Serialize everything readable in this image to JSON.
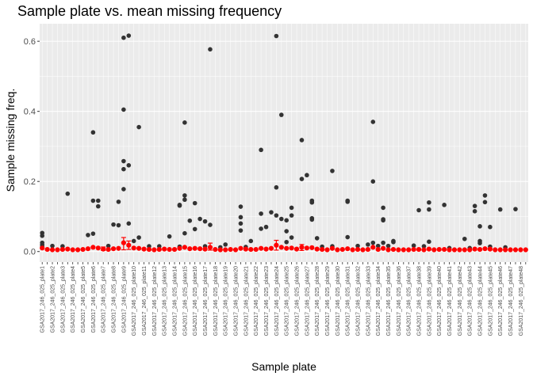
{
  "chart_data": {
    "type": "scatter",
    "title": "Sample plate vs. mean missing frequency",
    "xlabel": "Sample plate",
    "ylabel": "Sample missing freq.",
    "ylim": [
      -0.03,
      0.65
    ],
    "yticks": [
      0.0,
      0.2,
      0.4,
      0.6
    ],
    "ytick_labels": [
      "0.0",
      "0.2",
      "0.4",
      "0.6"
    ],
    "grid": true,
    "legend": "none",
    "colors": {
      "panel": "#ebebeb",
      "grid": "#ffffff",
      "points": "#333333",
      "means": "#ff0000",
      "errorbars": "#ff0000"
    },
    "categories": [
      "GSA2017_246_025_plate1",
      "GSA2017_246_025_plate2",
      "GSA2017_246_025_plate3",
      "GSA2017_246_025_plate4",
      "GSA2017_246_025_plate5",
      "GSA2017_246_025_plate6",
      "GSA2017_246_025_plate7",
      "GSA2017_246_025_plate8",
      "GSA2017_246_025_plate9",
      "GSA2017_246_025_plate10",
      "GSA2017_246_025_plate11",
      "GSA2017_246_025_plate12",
      "GSA2017_246_025_plate13",
      "GSA2017_246_025_plate14",
      "GSA2017_246_025_plate15",
      "GSA2017_246_025_plate16",
      "GSA2017_246_025_plate17",
      "GSA2017_246_025_plate18",
      "GSA2017_246_025_plate19",
      "GSA2017_246_025_plate20",
      "GSA2017_246_025_plate21",
      "GSA2017_246_025_plate22",
      "GSA2017_246_025_plate23",
      "GSA2017_246_025_plate24",
      "GSA2017_246_025_plate25",
      "GSA2017_246_025_plate26",
      "GSA2017_246_025_plate27",
      "GSA2017_246_025_plate28",
      "GSA2017_246_025_plate29",
      "GSA2017_246_025_plate30",
      "GSA2017_246_025_plate31",
      "GSA2017_246_025_plate32",
      "GSA2017_246_025_plate33",
      "GSA2017_246_025_plate34",
      "GSA2017_246_025_plate35",
      "GSA2017_246_025_plate36",
      "GSA2017_246_025_plate37",
      "GSA2017_246_025_plate38",
      "GSA2017_246_025_plate39",
      "GSA2017_246_025_plate40",
      "GSA2017_246_025_plate41",
      "GSA2017_246_025_plate42",
      "GSA2017_246_025_plate43",
      "GSA2017_246_025_plate44",
      "GSA2017_246_025_plate45",
      "GSA2017_246_025_plate46",
      "GSA2017_246_025_plate47",
      "GSA2017_246_025_plate48",
      "GSA2017_246_025_plate49",
      "GSA2017_246_025_plate50",
      "GSA2017_246_025_plate51",
      "GSA2017_246_025_plate52",
      "GSA2017_246_025_plate53",
      "GSA2017_246_025_plate54",
      "GSA2017_246_025_plate55",
      "GSA2017_246_025_plate56",
      "GSA2017_246_025_plate57",
      "GSA2017_246_025_plate58",
      "GSA2017_246_025_plate59",
      "GSA2017_246_025_plate60",
      "GSA2017_246_025_plate61",
      "GSA2017_246_025_plate62",
      "GSA2017_246_025_plate63",
      "GSA2017_246_025_plate64",
      "GSA2017_246_025_plate65",
      "GSA2017_246_025_plate66",
      "GSA2017_246_025_plate67",
      "GSA2017_246_025_plate68",
      "GSA2017_246_025_plate69",
      "GSA2017_246_025_plate70",
      "GSA2017_246_025_plate71",
      "GSA2017_246_025_plate72",
      "GSA2017_246_025_plate73",
      "GSA2017_246_025_plate74",
      "GSA2017_246_025_plate75",
      "GSA2017_246_025_plate76",
      "GSA2017_246_025_plate77",
      "GSA2017_246_025_plate78",
      "GSA2017_246_025_plate79",
      "GSA2017_246_025_plate80",
      "GSA2017_246_025_plate81",
      "GSA2017_246_025_plate82",
      "GSA2017_246_025_plate83",
      "GSA2017_246_025_plate84",
      "GSA2017_246_025_plate85",
      "GSA2017_246_025_plate86",
      "GSA2017_246_025_plate87",
      "GSA2017_246_025_plate88",
      "GSA2017_246_025_plate89",
      "GSA2017_246_025_plate90",
      "GSA2017_246_025_plate91",
      "GSA2017_246_025_plate92",
      "GSA2017_246_025_plate93",
      "GSA2017_246_025_plate94",
      "GSA2017_246_025_plate95",
      "GSA2017_246_025_plate96",
      "GSA2017_246_025_plate97",
      "GSA2017_246_025_plate98",
      "GSA2017_246_025_plate99",
      "GSA2017_246_025_plate100",
      "GSA2017_246_025_plate101",
      "GSA2017_246_025_plate102",
      "GSA2017_246_025_plate103",
      "GSA2017_246_025_plate104",
      "GSA2017_246_025_plate105",
      "GSA2017_246_025_plate106",
      "GSA2017_246_025_plate107",
      "GSA2017_246_025_plate108",
      "GSA2017_246_025_plate109",
      "GSA2017_246_025_plate110",
      "GSA2017_246_025_plate111",
      "GSA2017_246_025_plate112",
      "GSA2017_246_025_plate113",
      "GSA2017_246_025_plate114",
      "GSA2017_246_025_plate115",
      "GSA2017_246_025_plate116",
      "GSA2017_246_025_plate117",
      "GSA2017_246_025_plate118",
      "GSA2017_246_025_plate119",
      "GSA2017_246_025_plate120",
      "GSA2017_246_025_plate121",
      "GSA2017_246_025_plate122",
      "GSA2017_246_025_plate123",
      "GSA2017_246_025_plate124",
      "GSA2017_246_025_plate125",
      "GSA2017_246_025_plate126",
      "GSA2017_246_025_plate127",
      "GSA2017_246_025_plate128",
      "GSA2017_246_025_plate129",
      "GSA2017_246_025_plate130",
      "GSA2017_246_025_plate131",
      "GSA2017_246_025_plate132",
      "GSA2017_246_025_plate133",
      "GSA2017_246_025_plate134",
      "GSA2017_246_025_plate135",
      "GSA2017_246_025_plate136",
      "GSA2017_246_025_plate137",
      "GSA2017_246_025_plate138",
      "GSA2017_246_025_plate139",
      "GSA2017_246_025_plate140",
      "GSA2017_246_025_plate141",
      "GSA2017_246_025_plate142",
      "GSA2017_246_025_plate143",
      "GSA2017_246_025_plate144",
      "GSA2017_246_025_plate145",
      "GSA2017_246_025_plate146",
      "GSA2017_246_025_plate147",
      "GSA2017_246_025_plate148",
      "GSA2017_246_025_plate149",
      "GSA2017_246_025_plate150",
      "GSA2017_246_025_plate151",
      "GSA2017_246_025_plate152",
      "GSA2017_246_025_plate153",
      "GSA2017_246_025_plate154",
      "GSA2017_246_025_plate155",
      "GSA2017_246_025_plate156",
      "GSA2017_246_025_plate157",
      "GSA2017_246_025_plate158",
      "GSA2017_246_025_plate159",
      "GSA2017_246_025_plate160",
      "GSA2017_246_025_plate161",
      "GSA2017_246_025_plate162",
      "GSA2017_246_025_plate163",
      "GSA2017_246_025_plate164",
      "GSA2017_246_025_plate165",
      "GSA2017_246_025_plate166",
      "GSA2017_246_025_plate167",
      "GSA2017_246_025_plate168",
      "GSA2017_246_025_plate169",
      "GSA2017_246_025_plate170",
      "GSA2017_246_025_plate171",
      "GSA2017_246_025_plate172",
      "GSA2017_246_025_plate173",
      "GSA2017_246_025_plate174",
      "GSA2017_246_025_plate175",
      "COMBS2017_246_025_plate",
      "COMBS2017_246_025_RERUN"
    ],
    "tick_label_every": 2,
    "points": [
      [
        0,
        0.053
      ],
      [
        0,
        0.045
      ],
      [
        0,
        0.025
      ],
      [
        0,
        0.019
      ],
      [
        0,
        0.013
      ],
      [
        2,
        0.016
      ],
      [
        4,
        0.015
      ],
      [
        5,
        0.165
      ],
      [
        9,
        0.047
      ],
      [
        10,
        0.34
      ],
      [
        10,
        0.145
      ],
      [
        10,
        0.051
      ],
      [
        11,
        0.145
      ],
      [
        11,
        0.129
      ],
      [
        13,
        0.016
      ],
      [
        14,
        0.077
      ],
      [
        15,
        0.142
      ],
      [
        15,
        0.075
      ],
      [
        16,
        0.61
      ],
      [
        16,
        0.405
      ],
      [
        16,
        0.258
      ],
      [
        16,
        0.235
      ],
      [
        16,
        0.178
      ],
      [
        16,
        0.025
      ],
      [
        17,
        0.616
      ],
      [
        17,
        0.246
      ],
      [
        17,
        0.08
      ],
      [
        18,
        0.03
      ],
      [
        19,
        0.355
      ],
      [
        19,
        0.04
      ],
      [
        21,
        0.015
      ],
      [
        23,
        0.015
      ],
      [
        25,
        0.043
      ],
      [
        27,
        0.133
      ],
      [
        27,
        0.131
      ],
      [
        27,
        0.014
      ],
      [
        28,
        0.148
      ],
      [
        28,
        0.368
      ],
      [
        28,
        0.16
      ],
      [
        28,
        0.052
      ],
      [
        29,
        0.088
      ],
      [
        30,
        0.138
      ],
      [
        30,
        0.064
      ],
      [
        31,
        0.093
      ],
      [
        32,
        0.086
      ],
      [
        32,
        0.015
      ],
      [
        33,
        0.577
      ],
      [
        33,
        0.076
      ],
      [
        35,
        0.012
      ],
      [
        36,
        0.02
      ],
      [
        39,
        0.128
      ],
      [
        39,
        0.098
      ],
      [
        39,
        0.08
      ],
      [
        39,
        0.06
      ],
      [
        40,
        0.013
      ],
      [
        41,
        0.03
      ],
      [
        43,
        0.29
      ],
      [
        43,
        0.108
      ],
      [
        43,
        0.065
      ],
      [
        44,
        0.07
      ],
      [
        45,
        0.112
      ],
      [
        46,
        0.615
      ],
      [
        46,
        0.183
      ],
      [
        46,
        0.103
      ],
      [
        47,
        0.39
      ],
      [
        47,
        0.093
      ],
      [
        48,
        0.089
      ],
      [
        48,
        0.058
      ],
      [
        48,
        0.027
      ],
      [
        49,
        0.125
      ],
      [
        49,
        0.103
      ],
      [
        49,
        0.04
      ],
      [
        51,
        0.318
      ],
      [
        51,
        0.207
      ],
      [
        52,
        0.218
      ],
      [
        53,
        0.145
      ],
      [
        53,
        0.14
      ],
      [
        53,
        0.095
      ],
      [
        53,
        0.091
      ],
      [
        54,
        0.038
      ],
      [
        55,
        0.014
      ],
      [
        57,
        0.23
      ],
      [
        57,
        0.015
      ],
      [
        60,
        0.145
      ],
      [
        60,
        0.142
      ],
      [
        60,
        0.041
      ],
      [
        62,
        0.016
      ],
      [
        64,
        0.02
      ],
      [
        65,
        0.37
      ],
      [
        65,
        0.2
      ],
      [
        65,
        0.025
      ],
      [
        66,
        0.016
      ],
      [
        67,
        0.125
      ],
      [
        67,
        0.092
      ],
      [
        67,
        0.089
      ],
      [
        67,
        0.025
      ],
      [
        68,
        0.016
      ],
      [
        69,
        0.03
      ],
      [
        69,
        0.027
      ],
      [
        73,
        0.017
      ],
      [
        74,
        0.118
      ],
      [
        75,
        0.015
      ],
      [
        76,
        0.14
      ],
      [
        76,
        0.12
      ],
      [
        76,
        0.028
      ],
      [
        79,
        0.133
      ],
      [
        80,
        0.01
      ],
      [
        83,
        0.036
      ],
      [
        84,
        0.01
      ],
      [
        85,
        0.13
      ],
      [
        85,
        0.115
      ],
      [
        86,
        0.072
      ],
      [
        86,
        0.03
      ],
      [
        86,
        0.024
      ],
      [
        87,
        0.16
      ],
      [
        87,
        0.141
      ],
      [
        88,
        0.07
      ],
      [
        88,
        0.014
      ],
      [
        90,
        0.12
      ],
      [
        91,
        0.012
      ],
      [
        93,
        0.121
      ]
    ],
    "means": [
      0.01,
      0.006,
      0.005,
      0.005,
      0.006,
      0.007,
      0.005,
      0.005,
      0.006,
      0.008,
      0.012,
      0.01,
      0.007,
      0.006,
      0.008,
      0.009,
      0.025,
      0.018,
      0.01,
      0.009,
      0.007,
      0.006,
      0.005,
      0.006,
      0.007,
      0.006,
      0.006,
      0.009,
      0.012,
      0.008,
      0.009,
      0.008,
      0.007,
      0.012,
      0.006,
      0.005,
      0.005,
      0.006,
      0.005,
      0.009,
      0.007,
      0.006,
      0.006,
      0.009,
      0.007,
      0.009,
      0.018,
      0.012,
      0.009,
      0.01,
      0.007,
      0.012,
      0.01,
      0.011,
      0.007,
      0.006,
      0.005,
      0.009,
      0.005,
      0.006,
      0.008,
      0.005,
      0.006,
      0.005,
      0.006,
      0.012,
      0.006,
      0.009,
      0.005,
      0.006,
      0.005,
      0.005,
      0.005,
      0.006,
      0.006,
      0.005,
      0.007,
      0.005,
      0.006,
      0.006,
      0.005,
      0.005,
      0.005,
      0.005,
      0.005,
      0.007,
      0.006,
      0.008,
      0.007,
      0.005,
      0.005,
      0.005,
      0.005,
      0.005,
      0.005,
      0.005
    ],
    "errorbars": [
      {
        "x": 16,
        "lo": 0.005,
        "hi": 0.04
      },
      {
        "x": 17,
        "lo": 0.006,
        "hi": 0.03
      },
      {
        "x": 33,
        "lo": 0.004,
        "hi": 0.024
      },
      {
        "x": 46,
        "lo": 0.004,
        "hi": 0.032
      },
      {
        "x": 12,
        "lo": 0.003,
        "hi": 0.013
      },
      {
        "x": 51,
        "lo": 0.003,
        "hi": 0.02
      }
    ]
  }
}
